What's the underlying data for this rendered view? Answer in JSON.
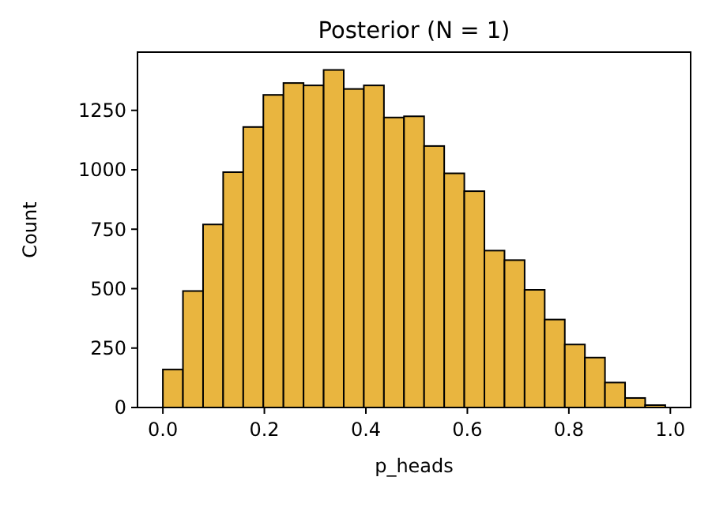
{
  "chart_data": {
    "type": "histogram",
    "title": "Posterior (N = 1)",
    "xlabel": "p_heads",
    "ylabel": "Count",
    "color": "#e9b53f",
    "bins": [
      0,
      0.0396,
      0.0792,
      0.1188,
      0.1584,
      0.198,
      0.2376,
      0.2772,
      0.3168,
      0.3564,
      0.396,
      0.4356,
      0.4752,
      0.5148,
      0.5544,
      0.594,
      0.6336,
      0.6732,
      0.7128,
      0.7524,
      0.792,
      0.8316,
      0.8712,
      0.9108,
      0.9504,
      0.99
    ],
    "values": [
      160,
      490,
      770,
      990,
      1180,
      1315,
      1365,
      1355,
      1420,
      1340,
      1355,
      1220,
      1225,
      1100,
      985,
      910,
      660,
      620,
      495,
      370,
      265,
      210,
      105,
      40,
      10
    ],
    "xlim": [
      -0.05,
      1.04
    ],
    "ylim": [
      0,
      1495
    ],
    "xticks": [
      {
        "value": 0,
        "label": "0.0"
      },
      0.2,
      0.4,
      0.6,
      0.8,
      {
        "value": 1,
        "label": "1.0"
      }
    ],
    "yticks": [
      0,
      250,
      500,
      750,
      1000,
      1250
    ],
    "grid": false
  }
}
